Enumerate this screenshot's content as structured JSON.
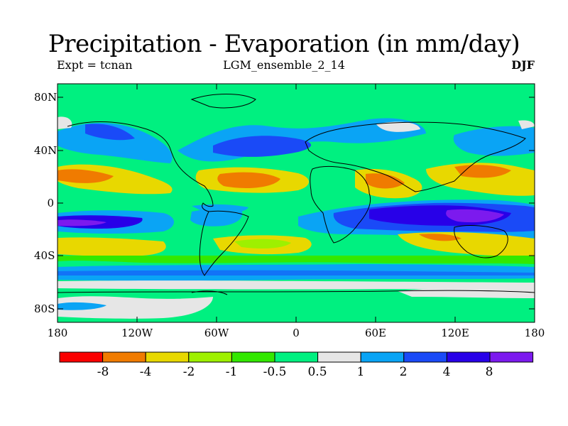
{
  "title": "Precipitation - Evaporation (in mm/day)",
  "subtitle_left": "Expt = tcnan",
  "subtitle_center": "LGM_ensemble_2_14",
  "subtitle_right": "DJF",
  "lat_labels": [
    "80N",
    "40N",
    "0",
    "40S",
    "80S"
  ],
  "lon_labels": [
    "180",
    "120W",
    "60W",
    "0",
    "60E",
    "120E",
    "180"
  ],
  "colorbar": {
    "colors": [
      "#fa0000",
      "#f07b00",
      "#e8d800",
      "#9ef000",
      "#33e800",
      "#00f080",
      "#e6e6e6",
      "#0aa4f5",
      "#1a4af7",
      "#2800e8",
      "#7c1aee"
    ],
    "labels": [
      "-8",
      "-4",
      "-2",
      "-1",
      "-0.5",
      "0.5",
      "1",
      "2",
      "4",
      "8"
    ]
  },
  "palette": {
    "background": "#00f080",
    "neutral": "#e6e6e6",
    "moist_light": "#0aa4f5",
    "moist_mid": "#1a4af7",
    "moist_dark": "#2800e8",
    "moist_max": "#7c1aee",
    "dry_light": "#33e800",
    "dry_mid": "#9ef000",
    "dry_strong": "#e8d800",
    "dry_max": "#f07b00"
  }
}
